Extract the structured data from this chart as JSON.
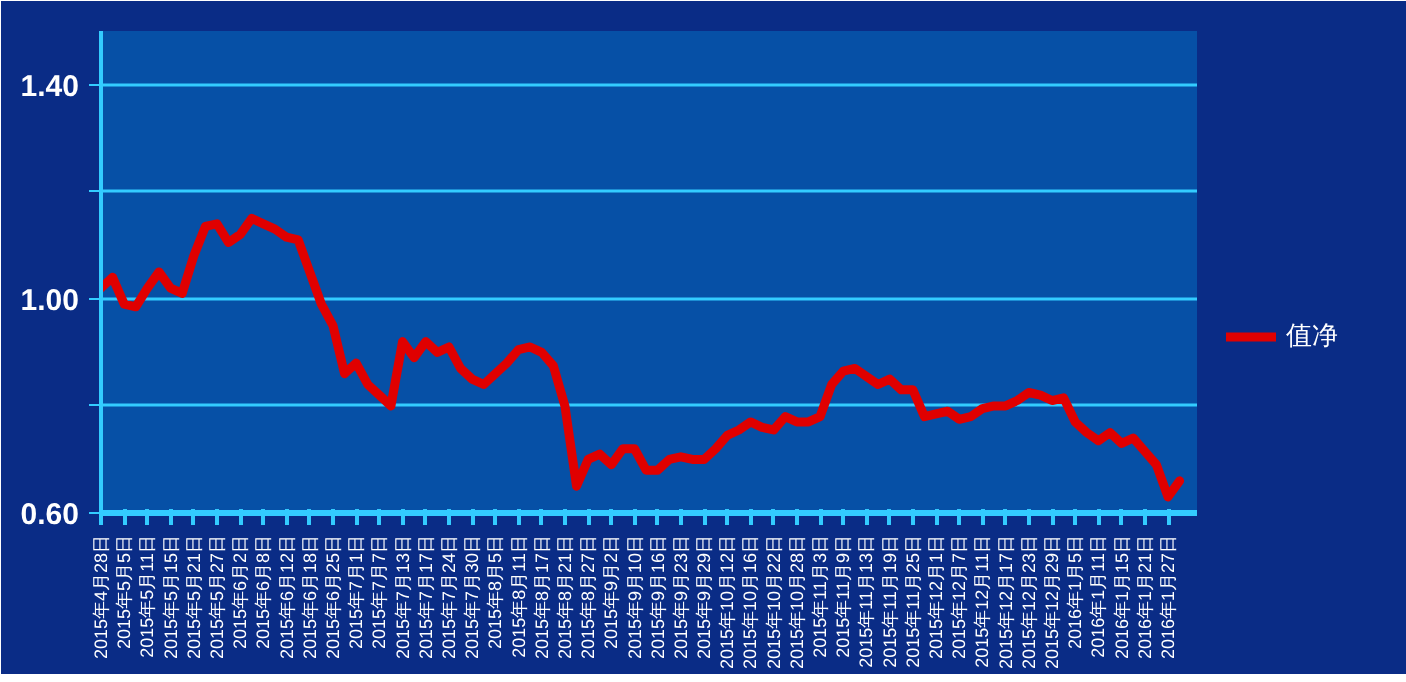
{
  "chart_data": {
    "type": "line",
    "categories": [
      "2015年4月28日",
      null,
      "2015年5月5日",
      null,
      "2015年5月11日",
      null,
      "2015年5月15日",
      null,
      "2015年5月21日",
      null,
      "2015年5月27日",
      null,
      "2015年6月2日",
      null,
      "2015年6月8日",
      null,
      "2015年6月12日",
      null,
      "2015年6月18日",
      null,
      "2015年6月25日",
      null,
      "2015年7月1日",
      null,
      "2015年7月7日",
      null,
      "2015年7月13日",
      null,
      "2015年7月17日",
      null,
      "2015年7月24日",
      null,
      "2015年7月30日",
      null,
      "2015年8月5日",
      null,
      "2015年8月11日",
      null,
      "2015年8月17日",
      null,
      "2015年8月21日",
      null,
      "2015年8月27日",
      null,
      "2015年9月2日",
      null,
      "2015年9月10日",
      null,
      "2015年9月16日",
      null,
      "2015年9月23日",
      null,
      "2015年9月29日",
      null,
      "2015年10月12日",
      null,
      "2015年10月16日",
      null,
      "2015年10月22日",
      null,
      "2015年10月28日",
      null,
      "2015年11月3日",
      null,
      "2015年11月9日",
      null,
      "2015年11月13日",
      null,
      "2015年11月19日",
      null,
      "2015年11月25日",
      null,
      "2015年12月1日",
      null,
      "2015年12月7日",
      null,
      "2015年12月11日",
      null,
      "2015年12月17日",
      null,
      "2015年12月23日",
      null,
      "2015年12月29日",
      null,
      "2016年1月5日",
      null,
      "2016年1月11日",
      null,
      "2016年1月15日",
      null,
      "2016年1月21日",
      null,
      "2016年1月27日",
      null
    ],
    "series": [
      {
        "name": "值净",
        "color": "#e00000",
        "values": [
          1.02,
          1.04,
          0.99,
          0.985,
          1.02,
          1.05,
          1.02,
          1.01,
          1.08,
          1.135,
          1.14,
          1.105,
          1.12,
          1.15,
          1.14,
          1.13,
          1.115,
          1.11,
          1.05,
          0.99,
          0.95,
          0.86,
          0.88,
          0.84,
          0.82,
          0.8,
          0.92,
          0.89,
          0.92,
          0.9,
          0.91,
          0.87,
          0.85,
          0.84,
          0.86,
          0.88,
          0.905,
          0.91,
          0.9,
          0.875,
          0.8,
          0.65,
          0.7,
          0.71,
          0.69,
          0.72,
          0.72,
          0.68,
          0.68,
          0.7,
          0.705,
          0.7,
          0.7,
          0.72,
          0.745,
          0.755,
          0.77,
          0.76,
          0.755,
          0.78,
          0.77,
          0.77,
          0.78,
          0.84,
          0.865,
          0.87,
          0.855,
          0.84,
          0.85,
          0.83,
          0.83,
          0.78,
          0.785,
          0.79,
          0.775,
          0.78,
          0.795,
          0.8,
          0.8,
          0.81,
          0.825,
          0.82,
          0.81,
          0.815,
          0.77,
          0.75,
          0.735,
          0.75,
          0.73,
          0.74,
          0.715,
          0.69,
          0.63,
          0.66
        ]
      }
    ],
    "ylim": [
      0.6,
      1.5
    ],
    "yticks": [
      {
        "value": 0.6,
        "label": "0.60"
      },
      {
        "value": 0.8,
        "label": null
      },
      {
        "value": 1.0,
        "label": "1.00"
      },
      {
        "value": 1.2,
        "label": null
      },
      {
        "value": 1.4,
        "label": "1.40"
      }
    ],
    "grid": "y",
    "legend": "right",
    "marker": "none",
    "line_style": "solid"
  }
}
